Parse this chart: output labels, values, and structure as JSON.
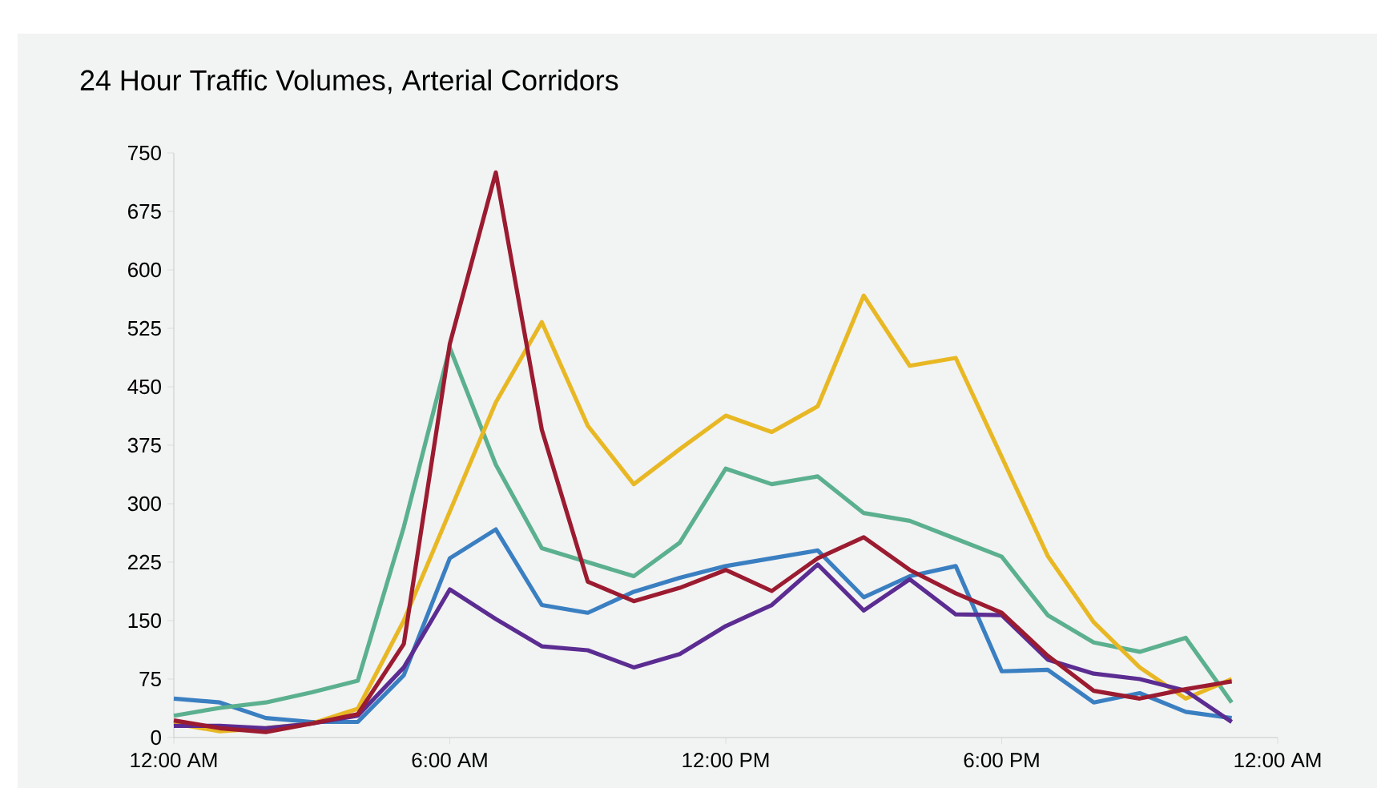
{
  "chart_data": {
    "type": "line",
    "title": "24 Hour Traffic Volumes, Arterial Corridors",
    "x": [
      0,
      1,
      2,
      3,
      4,
      5,
      6,
      7,
      8,
      9,
      10,
      11,
      12,
      13,
      14,
      15,
      16,
      17,
      18,
      19,
      20,
      21,
      22,
      23
    ],
    "series": [
      {
        "color": "#3a7fc1",
        "values": [
          50,
          45,
          25,
          20,
          20,
          80,
          230,
          267,
          170,
          160,
          187,
          205,
          220,
          230,
          240,
          180,
          207,
          220,
          85,
          87,
          45,
          57,
          33,
          25
        ]
      },
      {
        "color": "#5bb08f",
        "values": [
          28,
          38,
          45,
          58,
          73,
          270,
          500,
          350,
          243,
          225,
          207,
          250,
          345,
          325,
          335,
          288,
          278,
          255,
          232,
          157,
          122,
          110,
          128,
          45
        ]
      },
      {
        "color": "#e8b824",
        "values": [
          18,
          8,
          12,
          18,
          37,
          150,
          290,
          430,
          533,
          400,
          325,
          370,
          413,
          392,
          425,
          567,
          477,
          487,
          360,
          233,
          148,
          90,
          50,
          75
        ]
      },
      {
        "color": "#5b2c91",
        "values": [
          15,
          15,
          12,
          18,
          28,
          90,
          190,
          152,
          117,
          112,
          90,
          107,
          143,
          170,
          222,
          163,
          203,
          158,
          157,
          100,
          82,
          75,
          60,
          20
        ]
      },
      {
        "color": "#9b1b30",
        "values": [
          22,
          12,
          7,
          18,
          30,
          120,
          505,
          725,
          395,
          200,
          175,
          192,
          215,
          188,
          230,
          257,
          215,
          185,
          160,
          105,
          60,
          50,
          62,
          72
        ]
      }
    ],
    "xlim": [
      0,
      24
    ],
    "xticks": [
      {
        "value": 0,
        "label": "12:00 AM"
      },
      {
        "value": 6,
        "label": "6:00 AM"
      },
      {
        "value": 12,
        "label": "12:00 PM"
      },
      {
        "value": 18,
        "label": "6:00 PM"
      },
      {
        "value": 24,
        "label": "12:00 AM"
      }
    ],
    "ylim": [
      0,
      750
    ],
    "yticks": [
      0,
      75,
      150,
      225,
      300,
      375,
      450,
      525,
      600,
      675,
      750
    ],
    "grid": false,
    "legend": false,
    "marker": "none",
    "line_style": "solid"
  }
}
